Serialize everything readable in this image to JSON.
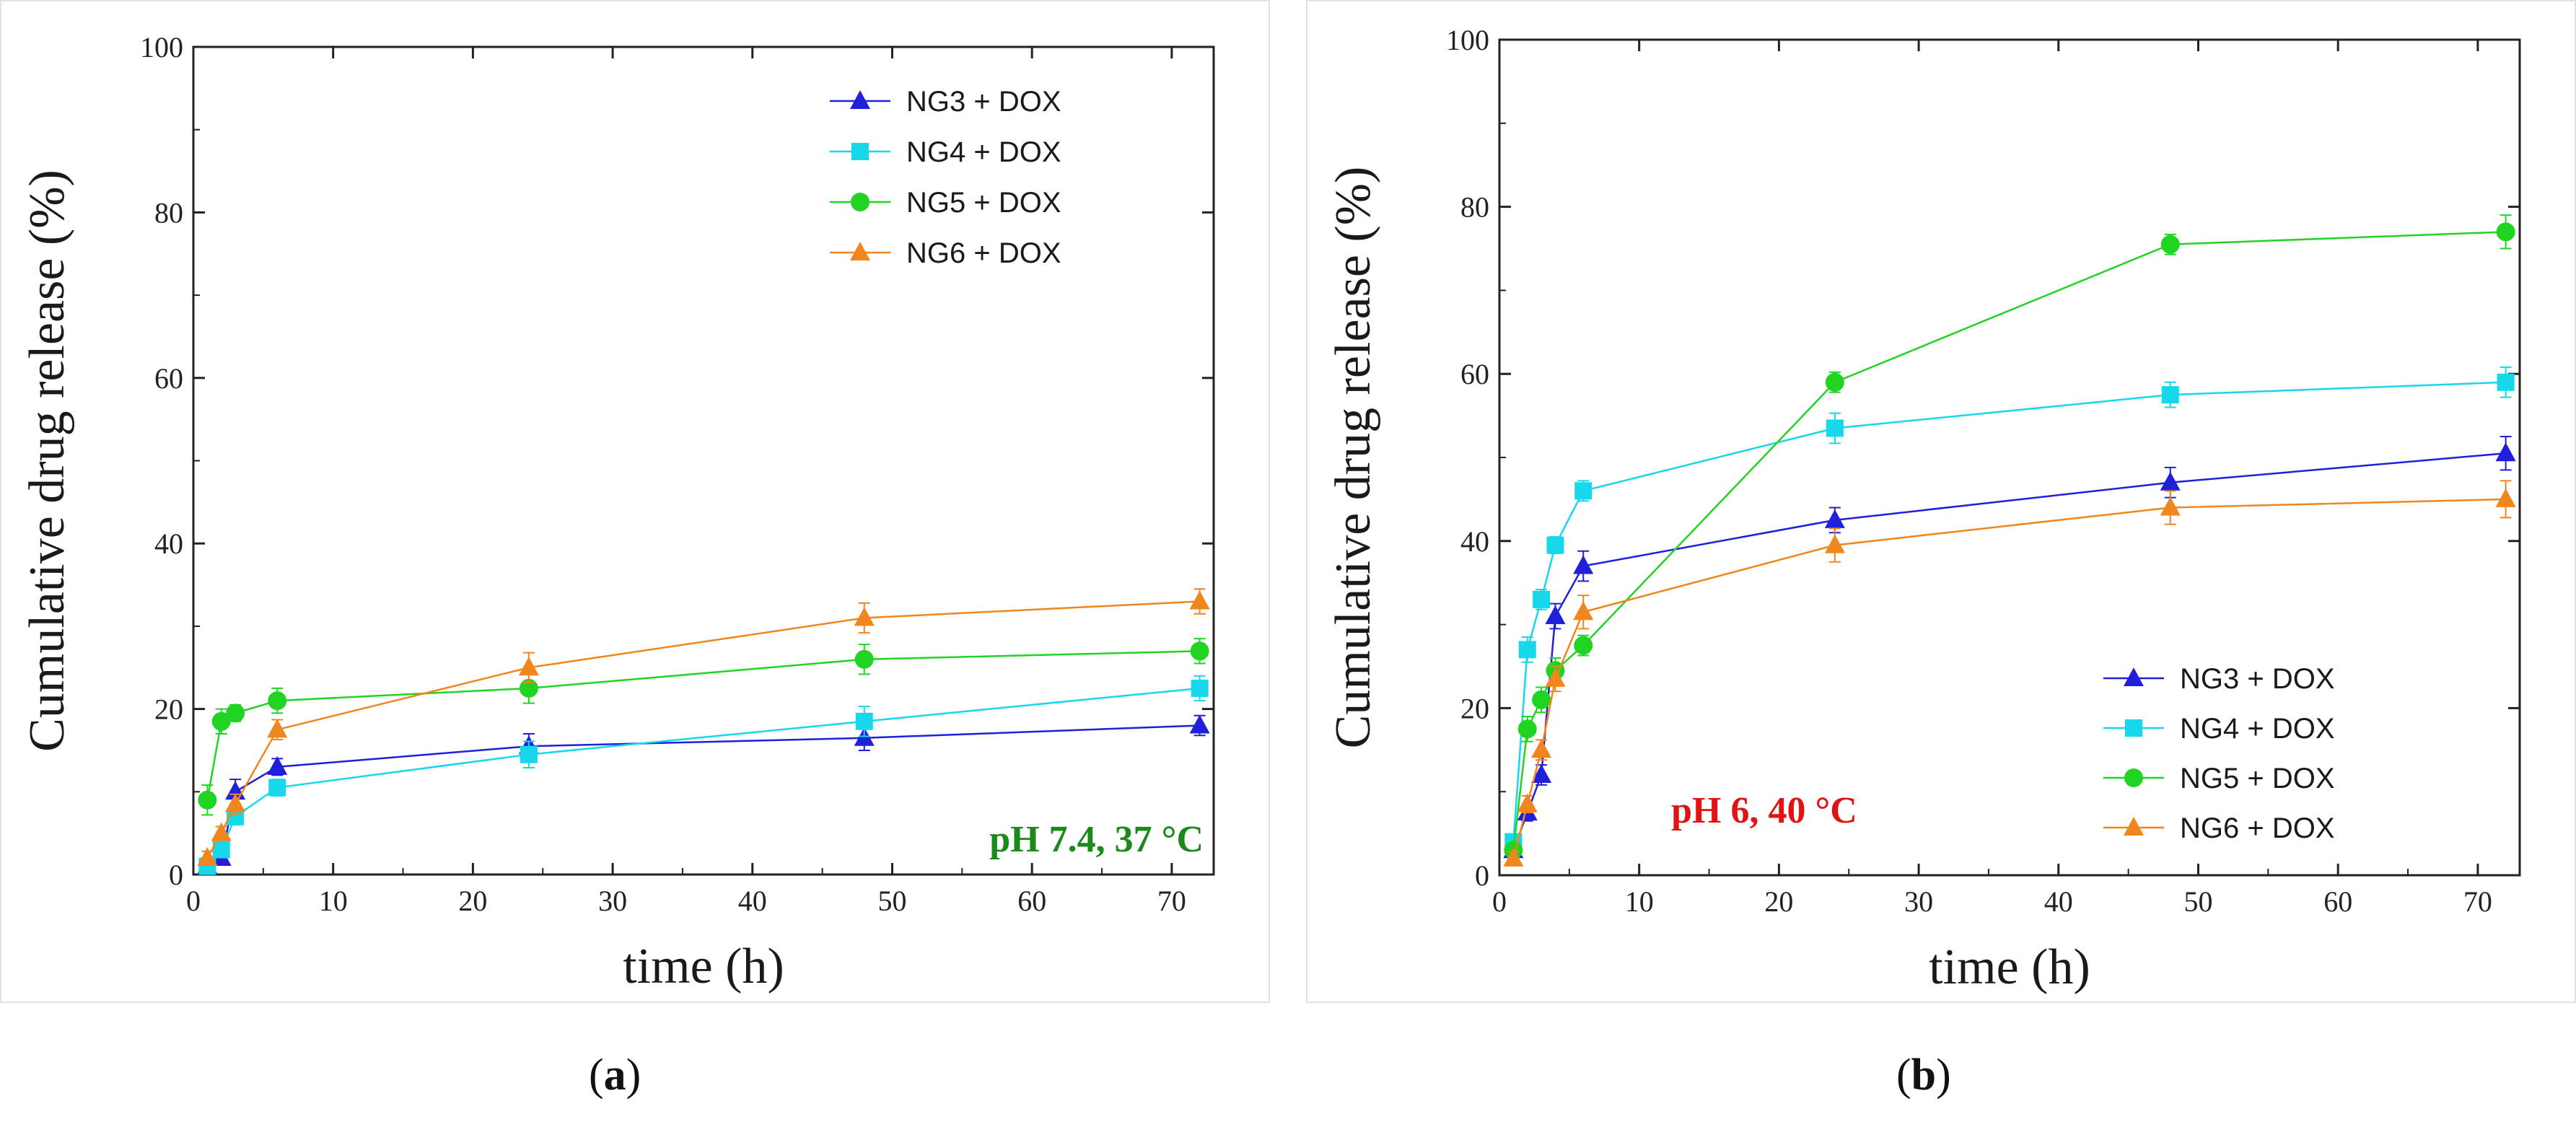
{
  "chart_data": [
    {
      "type": "line",
      "panel_label": "a",
      "title": "",
      "xlabel": "time (h)",
      "ylabel": "Cumulative drug release (%)",
      "xlim": [
        0,
        73
      ],
      "ylim": [
        0,
        100
      ],
      "xticks": [
        0,
        10,
        20,
        30,
        40,
        50,
        60,
        70
      ],
      "yticks": [
        0,
        20,
        40,
        60,
        80,
        100
      ],
      "annotation": "pH 7.4, 37 °C",
      "annotation_color": "#1a8a1a",
      "legend_position": "top-right",
      "series": [
        {
          "name": "NG3 + DOX",
          "color": "#1f1fdc",
          "marker": "triangle",
          "x": [
            1,
            2,
            3,
            6,
            24,
            48,
            72
          ],
          "y": [
            1,
            2,
            10,
            13,
            15.5,
            16.5,
            18
          ],
          "err": [
            0.8,
            0.8,
            1.5,
            1.0,
            1.5,
            1.5,
            1.2
          ]
        },
        {
          "name": "NG4 + DOX",
          "color": "#17d8ea",
          "marker": "square",
          "x": [
            1,
            2,
            3,
            6,
            24,
            48,
            72
          ],
          "y": [
            1,
            3,
            7,
            10.5,
            14.5,
            18.5,
            22.5
          ],
          "err": [
            0.6,
            0.8,
            1.0,
            1.0,
            1.6,
            1.8,
            1.5
          ]
        },
        {
          "name": "NG5 + DOX",
          "color": "#22d422",
          "marker": "circle",
          "x": [
            1,
            2,
            3,
            6,
            24,
            48,
            72
          ],
          "y": [
            9,
            18.5,
            19.5,
            21,
            22.5,
            26,
            27
          ],
          "err": [
            1.8,
            1.5,
            1.0,
            1.5,
            1.8,
            1.8,
            1.5
          ]
        },
        {
          "name": "NG6 + DOX",
          "color": "#f0861d",
          "marker": "triangle",
          "x": [
            1,
            2,
            3,
            6,
            24,
            48,
            72
          ],
          "y": [
            2,
            5,
            8.5,
            17.5,
            25,
            31,
            33
          ],
          "err": [
            0.8,
            0.8,
            1.2,
            1.2,
            1.8,
            1.8,
            1.5
          ]
        }
      ]
    },
    {
      "type": "line",
      "panel_label": "b",
      "title": "",
      "xlabel": "time (h)",
      "ylabel": "Cumulative drug release (%)",
      "xlim": [
        0,
        73
      ],
      "ylim": [
        0,
        100
      ],
      "xticks": [
        0,
        10,
        20,
        30,
        40,
        50,
        60,
        70
      ],
      "yticks": [
        0,
        20,
        40,
        60,
        80,
        100
      ],
      "annotation": "pH 6, 40 °C",
      "annotation_color": "#e01414",
      "legend_position": "bottom-right",
      "series": [
        {
          "name": "NG3 + DOX",
          "color": "#1f1fdc",
          "marker": "triangle",
          "x": [
            1,
            2,
            3,
            4,
            6,
            24,
            48,
            72
          ],
          "y": [
            3,
            7.5,
            12,
            31,
            37,
            42.5,
            47,
            50.5
          ],
          "err": [
            0.8,
            1.0,
            1.2,
            1.5,
            1.8,
            1.5,
            1.8,
            2.0
          ]
        },
        {
          "name": "NG4 + DOX",
          "color": "#17d8ea",
          "marker": "square",
          "x": [
            1,
            2,
            3,
            4,
            6,
            24,
            48,
            72
          ],
          "y": [
            4,
            27,
            33,
            39.5,
            46,
            53.5,
            57.5,
            59
          ],
          "err": [
            0.8,
            1.5,
            1.2,
            1.0,
            1.2,
            1.8,
            1.5,
            1.8
          ]
        },
        {
          "name": "NG5 + DOX",
          "color": "#22d422",
          "marker": "circle",
          "x": [
            1,
            2,
            3,
            4,
            6,
            24,
            48,
            72
          ],
          "y": [
            3,
            17.5,
            21,
            24.5,
            27.5,
            59,
            75.5,
            77
          ],
          "err": [
            0.8,
            1.5,
            1.5,
            1.5,
            1.2,
            1.2,
            1.2,
            2.0
          ]
        },
        {
          "name": "NG6 + DOX",
          "color": "#f0861d",
          "marker": "triangle",
          "x": [
            1,
            2,
            3,
            4,
            6,
            24,
            48,
            72
          ],
          "y": [
            2,
            8.5,
            15,
            23.5,
            31.5,
            39.5,
            44,
            45
          ],
          "err": [
            0.8,
            1.0,
            1.2,
            1.5,
            2.0,
            2.0,
            2.0,
            2.2
          ]
        }
      ]
    }
  ]
}
